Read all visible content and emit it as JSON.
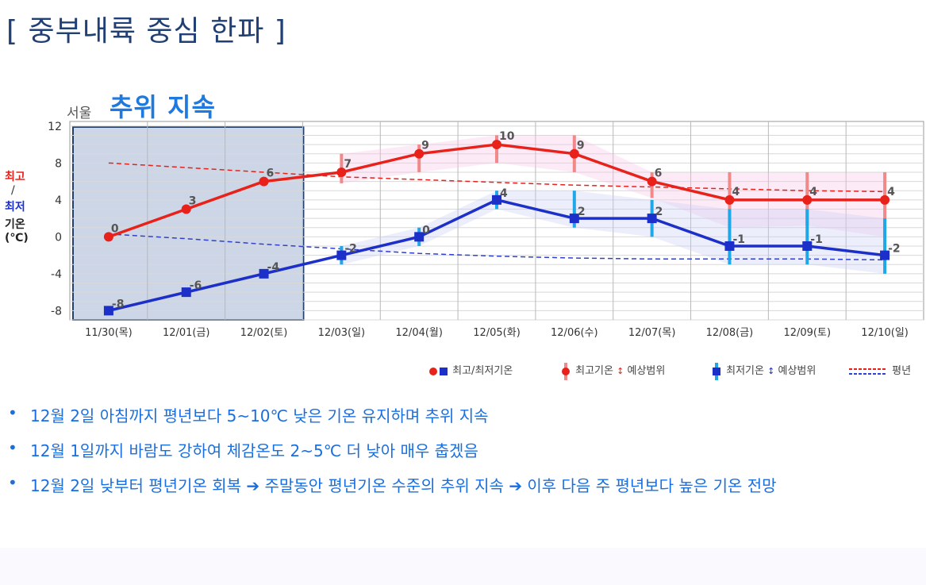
{
  "title": "[ 중부내륙 중심 한파 ]",
  "chart_header": {
    "city": "서울",
    "subtitle": "추위 지속"
  },
  "y_axis_label": {
    "high": "최고",
    "slash": "/",
    "low": "최저",
    "temp": "기온",
    "unit": "(℃)"
  },
  "chart_data": {
    "type": "line",
    "title": "",
    "categories": [
      "11/30(목)",
      "12/01(금)",
      "12/02(토)",
      "12/03(일)",
      "12/04(월)",
      "12/05(화)",
      "12/06(수)",
      "12/07(목)",
      "12/08(금)",
      "12/09(토)",
      "12/10(일)"
    ],
    "ylim": [
      -9,
      12.5
    ],
    "yticks": [
      -8,
      -4,
      0,
      4,
      8,
      12
    ],
    "grid": true,
    "highlight_categories": [
      "11/30(목)",
      "12/02(토)"
    ],
    "series": [
      {
        "name": "최고기온",
        "color": "#e8221b",
        "values": [
          0,
          3,
          6,
          7,
          9,
          10,
          9,
          6,
          4,
          4,
          4
        ],
        "range_low": [
          null,
          null,
          null,
          5.8,
          7,
          8,
          7,
          4.2,
          1,
          1.2,
          0
        ],
        "range_high": [
          null,
          null,
          null,
          9,
          10,
          11,
          11,
          7,
          7,
          7,
          7
        ]
      },
      {
        "name": "최저기온",
        "color": "#1c2fc9",
        "values": [
          -8,
          -6,
          -4,
          -2,
          0,
          4,
          2,
          2,
          -1,
          -1,
          -2
        ],
        "range_low": [
          null,
          null,
          null,
          -3,
          -1,
          3,
          1,
          0,
          -3,
          -3,
          -4
        ],
        "range_high": [
          null,
          null,
          null,
          -1,
          1,
          5,
          5,
          4,
          3,
          3,
          2
        ]
      },
      {
        "name": "최고 평년",
        "color": "#e8221b",
        "style": "dashed",
        "values": [
          8.0,
          7.5,
          7.0,
          6.5,
          6.2,
          5.9,
          5.6,
          5.4,
          5.2,
          5.0,
          4.9
        ]
      },
      {
        "name": "최저 평년",
        "color": "#3040d0",
        "style": "dashed",
        "values": [
          0.3,
          -0.2,
          -0.8,
          -1.3,
          -1.8,
          -2.1,
          -2.3,
          -2.4,
          -2.4,
          -2.4,
          -2.5
        ]
      }
    ]
  },
  "legend": {
    "highlow": "최고/최저기온",
    "high_range": "최고기온",
    "high_range_suffix": "예상범위",
    "low_range": "최저기온",
    "low_range_suffix": "예상범위",
    "normal": "평년"
  },
  "bullets": [
    "12월 2일 아침까지 평년보다 5~10℃ 낮은 기온 유지하며 추위 지속",
    "12월 1일까지 바람도 강하여 체감온도 2~5℃ 더 낮아 매우 춥겠음",
    "12월 2일 낮부터 평년기온 회복 ➔ 주말동안 평년기온 수준의 추위 지속 ➔ 이후 다음 주 평년보다 높은 기온 전망"
  ],
  "bullet_marker": "•"
}
